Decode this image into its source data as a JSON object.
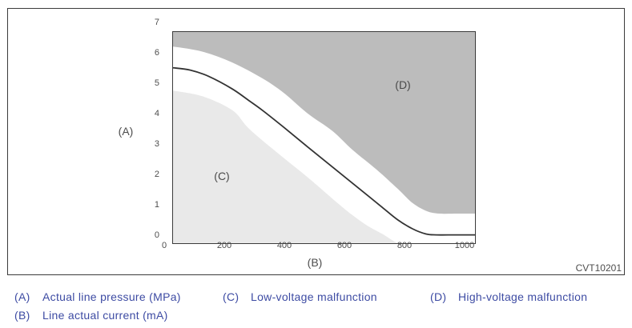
{
  "figure": {
    "code": "CVT10201",
    "axis": {
      "y_label": "(A)",
      "x_label": "(B)",
      "y_ticks": [
        7,
        6,
        5,
        4,
        3,
        2,
        1,
        0
      ],
      "x_ticks": [
        0,
        200,
        400,
        600,
        800,
        1000
      ]
    },
    "regions": {
      "c_label": "(C)",
      "d_label": "(D)"
    }
  },
  "legend": {
    "items": [
      {
        "key": "(A)",
        "text": "Actual line pressure (MPa)"
      },
      {
        "key": "(B)",
        "text": "Line actual current (mA)"
      },
      {
        "key": "(C)",
        "text": "Low-voltage malfunction"
      },
      {
        "key": "(D)",
        "text": "High-voltage malfunction"
      }
    ]
  },
  "colors": {
    "region_c_fill": "#e9e9e9",
    "region_d_fill": "#bcbcbc",
    "curve_stroke": "#333333",
    "plot_border": "#3b3b3b",
    "axis_text": "#4d4d4d",
    "legend_text": "#3d4ba3"
  },
  "chart_data": {
    "type": "area",
    "title": "",
    "xlabel": "(B) Line actual current (mA)",
    "ylabel": "(A) Actual line pressure (MPa)",
    "xlim": [
      0,
      1000
    ],
    "ylim": [
      0,
      7
    ],
    "x_ticks": [
      0,
      200,
      400,
      600,
      800,
      1000
    ],
    "y_ticks": [
      0,
      1,
      2,
      3,
      4,
      5,
      6,
      7
    ],
    "grid": false,
    "legend_position": "below-figure",
    "series": [
      {
        "name": "actual-line-pressure-curve",
        "type": "line",
        "points": [
          [
            0,
            5.8
          ],
          [
            60,
            5.72
          ],
          [
            120,
            5.52
          ],
          [
            200,
            5.1
          ],
          [
            255,
            4.72
          ],
          [
            300,
            4.4
          ],
          [
            370,
            3.85
          ],
          [
            450,
            3.2
          ],
          [
            550,
            2.4
          ],
          [
            650,
            1.6
          ],
          [
            700,
            1.2
          ],
          [
            750,
            0.8
          ],
          [
            800,
            0.5
          ],
          [
            845,
            0.33
          ],
          [
            880,
            0.3
          ],
          [
            940,
            0.3
          ],
          [
            1011,
            0.3
          ]
        ]
      },
      {
        "name": "high-voltage-malfunction-lower-boundary",
        "type": "area-above",
        "points": [
          [
            0,
            6.5
          ],
          [
            100,
            6.33
          ],
          [
            200,
            5.97
          ],
          [
            300,
            5.45
          ],
          [
            370,
            4.98
          ],
          [
            450,
            4.3
          ],
          [
            533,
            3.72
          ],
          [
            600,
            3.1
          ],
          [
            680,
            2.45
          ],
          [
            750,
            1.82
          ],
          [
            800,
            1.35
          ],
          [
            848,
            1.08
          ],
          [
            890,
            1.0
          ],
          [
            950,
            1.0
          ],
          [
            1011,
            1.0
          ]
        ]
      },
      {
        "name": "low-voltage-malfunction-upper-boundary",
        "type": "area-below",
        "points": [
          [
            0,
            5.05
          ],
          [
            100,
            4.86
          ],
          [
            200,
            4.4
          ],
          [
            255,
            3.8
          ],
          [
            350,
            3.0
          ],
          [
            450,
            2.2
          ],
          [
            550,
            1.35
          ],
          [
            600,
            0.95
          ],
          [
            650,
            0.6
          ],
          [
            700,
            0.33
          ],
          [
            740,
            0.08
          ],
          [
            758,
            0
          ]
        ]
      }
    ],
    "regions": [
      {
        "label": "(C)",
        "name": "Low-voltage malfunction",
        "location": "below low-voltage boundary",
        "fill": "#e9e9e9"
      },
      {
        "label": "(D)",
        "name": "High-voltage malfunction",
        "location": "above high-voltage boundary",
        "fill": "#bcbcbc"
      }
    ]
  }
}
